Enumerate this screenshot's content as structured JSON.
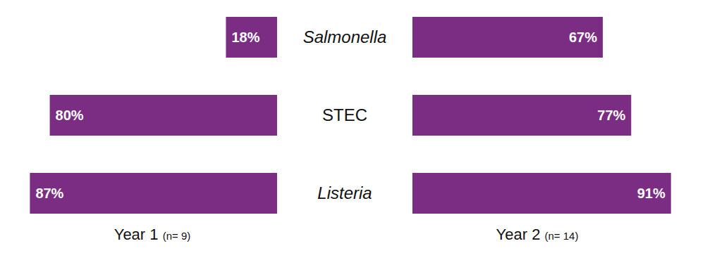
{
  "chart_data": {
    "type": "bar",
    "orientation": "horizontal",
    "categories": [
      "Salmonella",
      "STEC",
      "Listeria"
    ],
    "series": [
      {
        "name": "Year 1 (n= 9)",
        "color": "#7b2c83",
        "values": [
          18,
          80,
          87
        ],
        "value_labels": [
          "18%",
          "80%",
          "87%"
        ]
      },
      {
        "name": "Year 2 (n= 14)",
        "color": "#7b2c83",
        "values": [
          67,
          77,
          91
        ],
        "value_labels": [
          "67%",
          "77%",
          "91%"
        ]
      }
    ],
    "xlim": [
      0,
      100
    ],
    "data_labels": true,
    "tick_labels": false
  }
}
